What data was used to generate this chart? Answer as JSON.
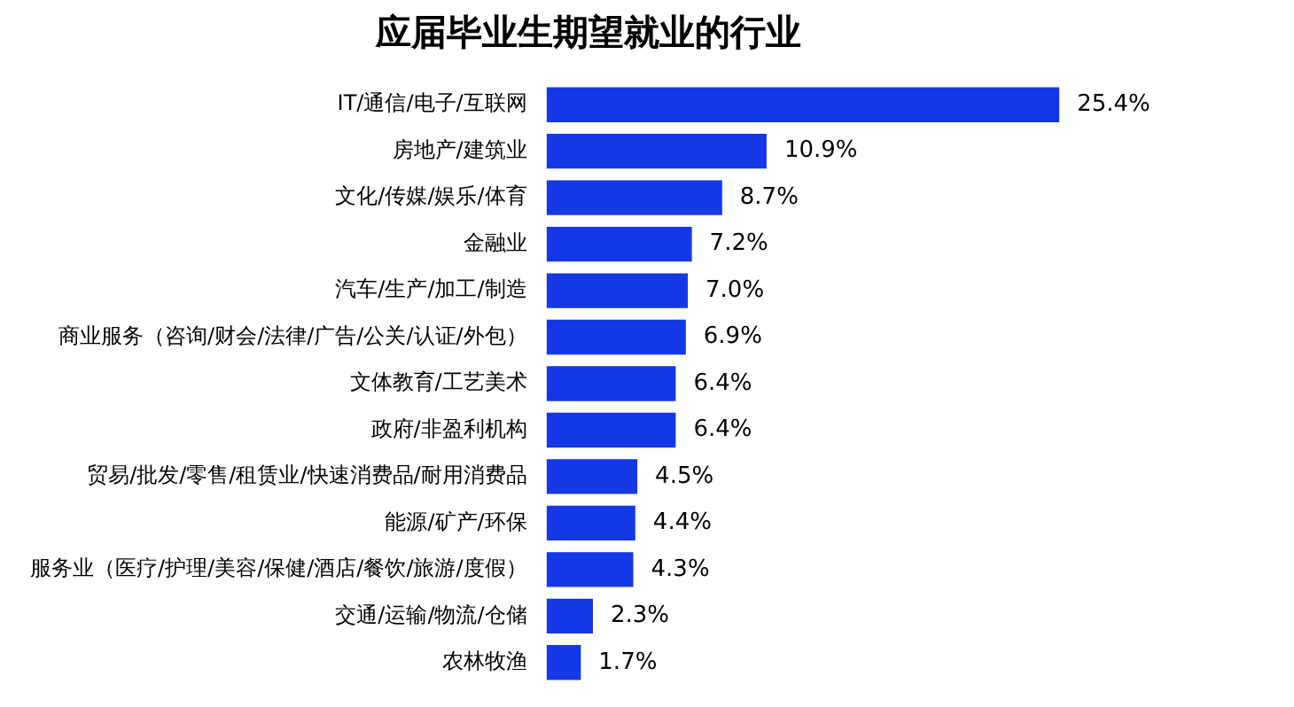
{
  "chart_data": {
    "type": "bar",
    "orientation": "horizontal",
    "title": "应届毕业生期望就业的行业",
    "categories": [
      "IT/通信/电子/互联网",
      "房地产/建筑业",
      "文化/传媒/娱乐/体育",
      "金融业",
      "汽车/生产/加工/制造",
      "商业服务（咨询/财会/法律/广告/公关/认证/外包）",
      "文体教育/工艺美术",
      "政府/非盈利机构",
      "贸易/批发/零售/租赁业/快速消费品/耐用消费品",
      "能源/矿产/环保",
      "服务业（医疗/护理/美容/保健/酒店/餐饮/旅游/度假）",
      "交通/运输/物流/仓储",
      "农林牧渔"
    ],
    "values": [
      25.4,
      10.9,
      8.7,
      7.2,
      7.0,
      6.9,
      6.4,
      6.4,
      4.5,
      4.4,
      4.3,
      2.3,
      1.7
    ],
    "value_labels": [
      "25.4%",
      "10.9%",
      "8.7%",
      "7.2%",
      "7.0%",
      "6.9%",
      "6.4%",
      "6.4%",
      "4.5%",
      "4.4%",
      "4.3%",
      "2.3%",
      "1.7%"
    ],
    "color": "#1438e6"
  }
}
